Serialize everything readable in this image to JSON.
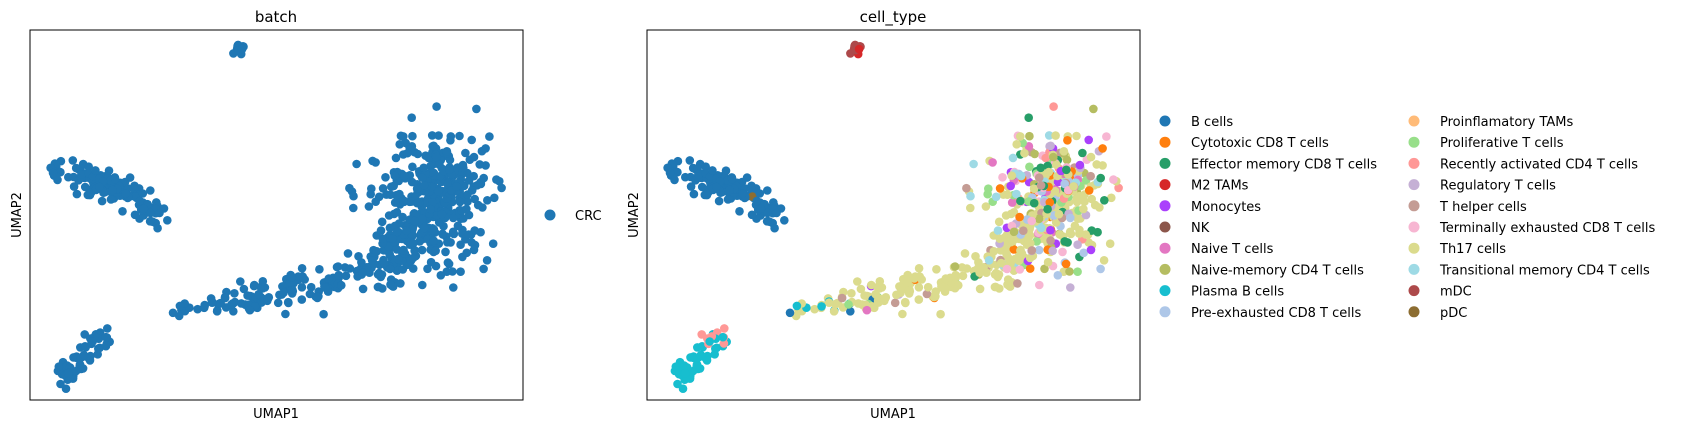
{
  "chart_data": [
    {
      "type": "scatter",
      "title": "batch",
      "xlabel": "UMAP1",
      "ylabel": "UMAP2",
      "grid": false,
      "legend_position": "right",
      "series": [
        {
          "name": "CRC",
          "color": "#1f77b4"
        }
      ]
    },
    {
      "type": "scatter",
      "title": "cell_type",
      "xlabel": "UMAP1",
      "ylabel": "UMAP2",
      "grid": false,
      "legend_position": "right",
      "series": [
        {
          "name": "B cells",
          "color": "#1f77b4"
        },
        {
          "name": "Cytotoxic CD8 T cells",
          "color": "#ff7f0e"
        },
        {
          "name": "Effector memory CD8 T cells",
          "color": "#279e68"
        },
        {
          "name": "M2 TAMs",
          "color": "#d62728"
        },
        {
          "name": "Monocytes",
          "color": "#aa40fc"
        },
        {
          "name": "NK",
          "color": "#8c564b"
        },
        {
          "name": "Naive T cells",
          "color": "#e377c2"
        },
        {
          "name": "Naive-memory CD4 T cells",
          "color": "#b5bd61"
        },
        {
          "name": "Plasma B cells",
          "color": "#17becf"
        },
        {
          "name": "Pre-exhausted CD8 T cells",
          "color": "#aec7e8"
        },
        {
          "name": "Proinflamatory TAMs",
          "color": "#ffbb78"
        },
        {
          "name": "Proliferative T cells",
          "color": "#98df8a"
        },
        {
          "name": "Recently activated CD4 T cells",
          "color": "#ff9896"
        },
        {
          "name": "Regulatory T cells",
          "color": "#c5b0d5"
        },
        {
          "name": "T helper cells",
          "color": "#c49c94"
        },
        {
          "name": "Terminally exhausted CD8 T cells",
          "color": "#f7b6d2"
        },
        {
          "name": "Th17 cells",
          "color": "#dbdb8d"
        },
        {
          "name": "Transitional memory CD4 T cells",
          "color": "#9edae5"
        },
        {
          "name": "mDC",
          "color": "#ad494a"
        },
        {
          "name": "pDC",
          "color": "#8c6d31"
        }
      ]
    }
  ]
}
